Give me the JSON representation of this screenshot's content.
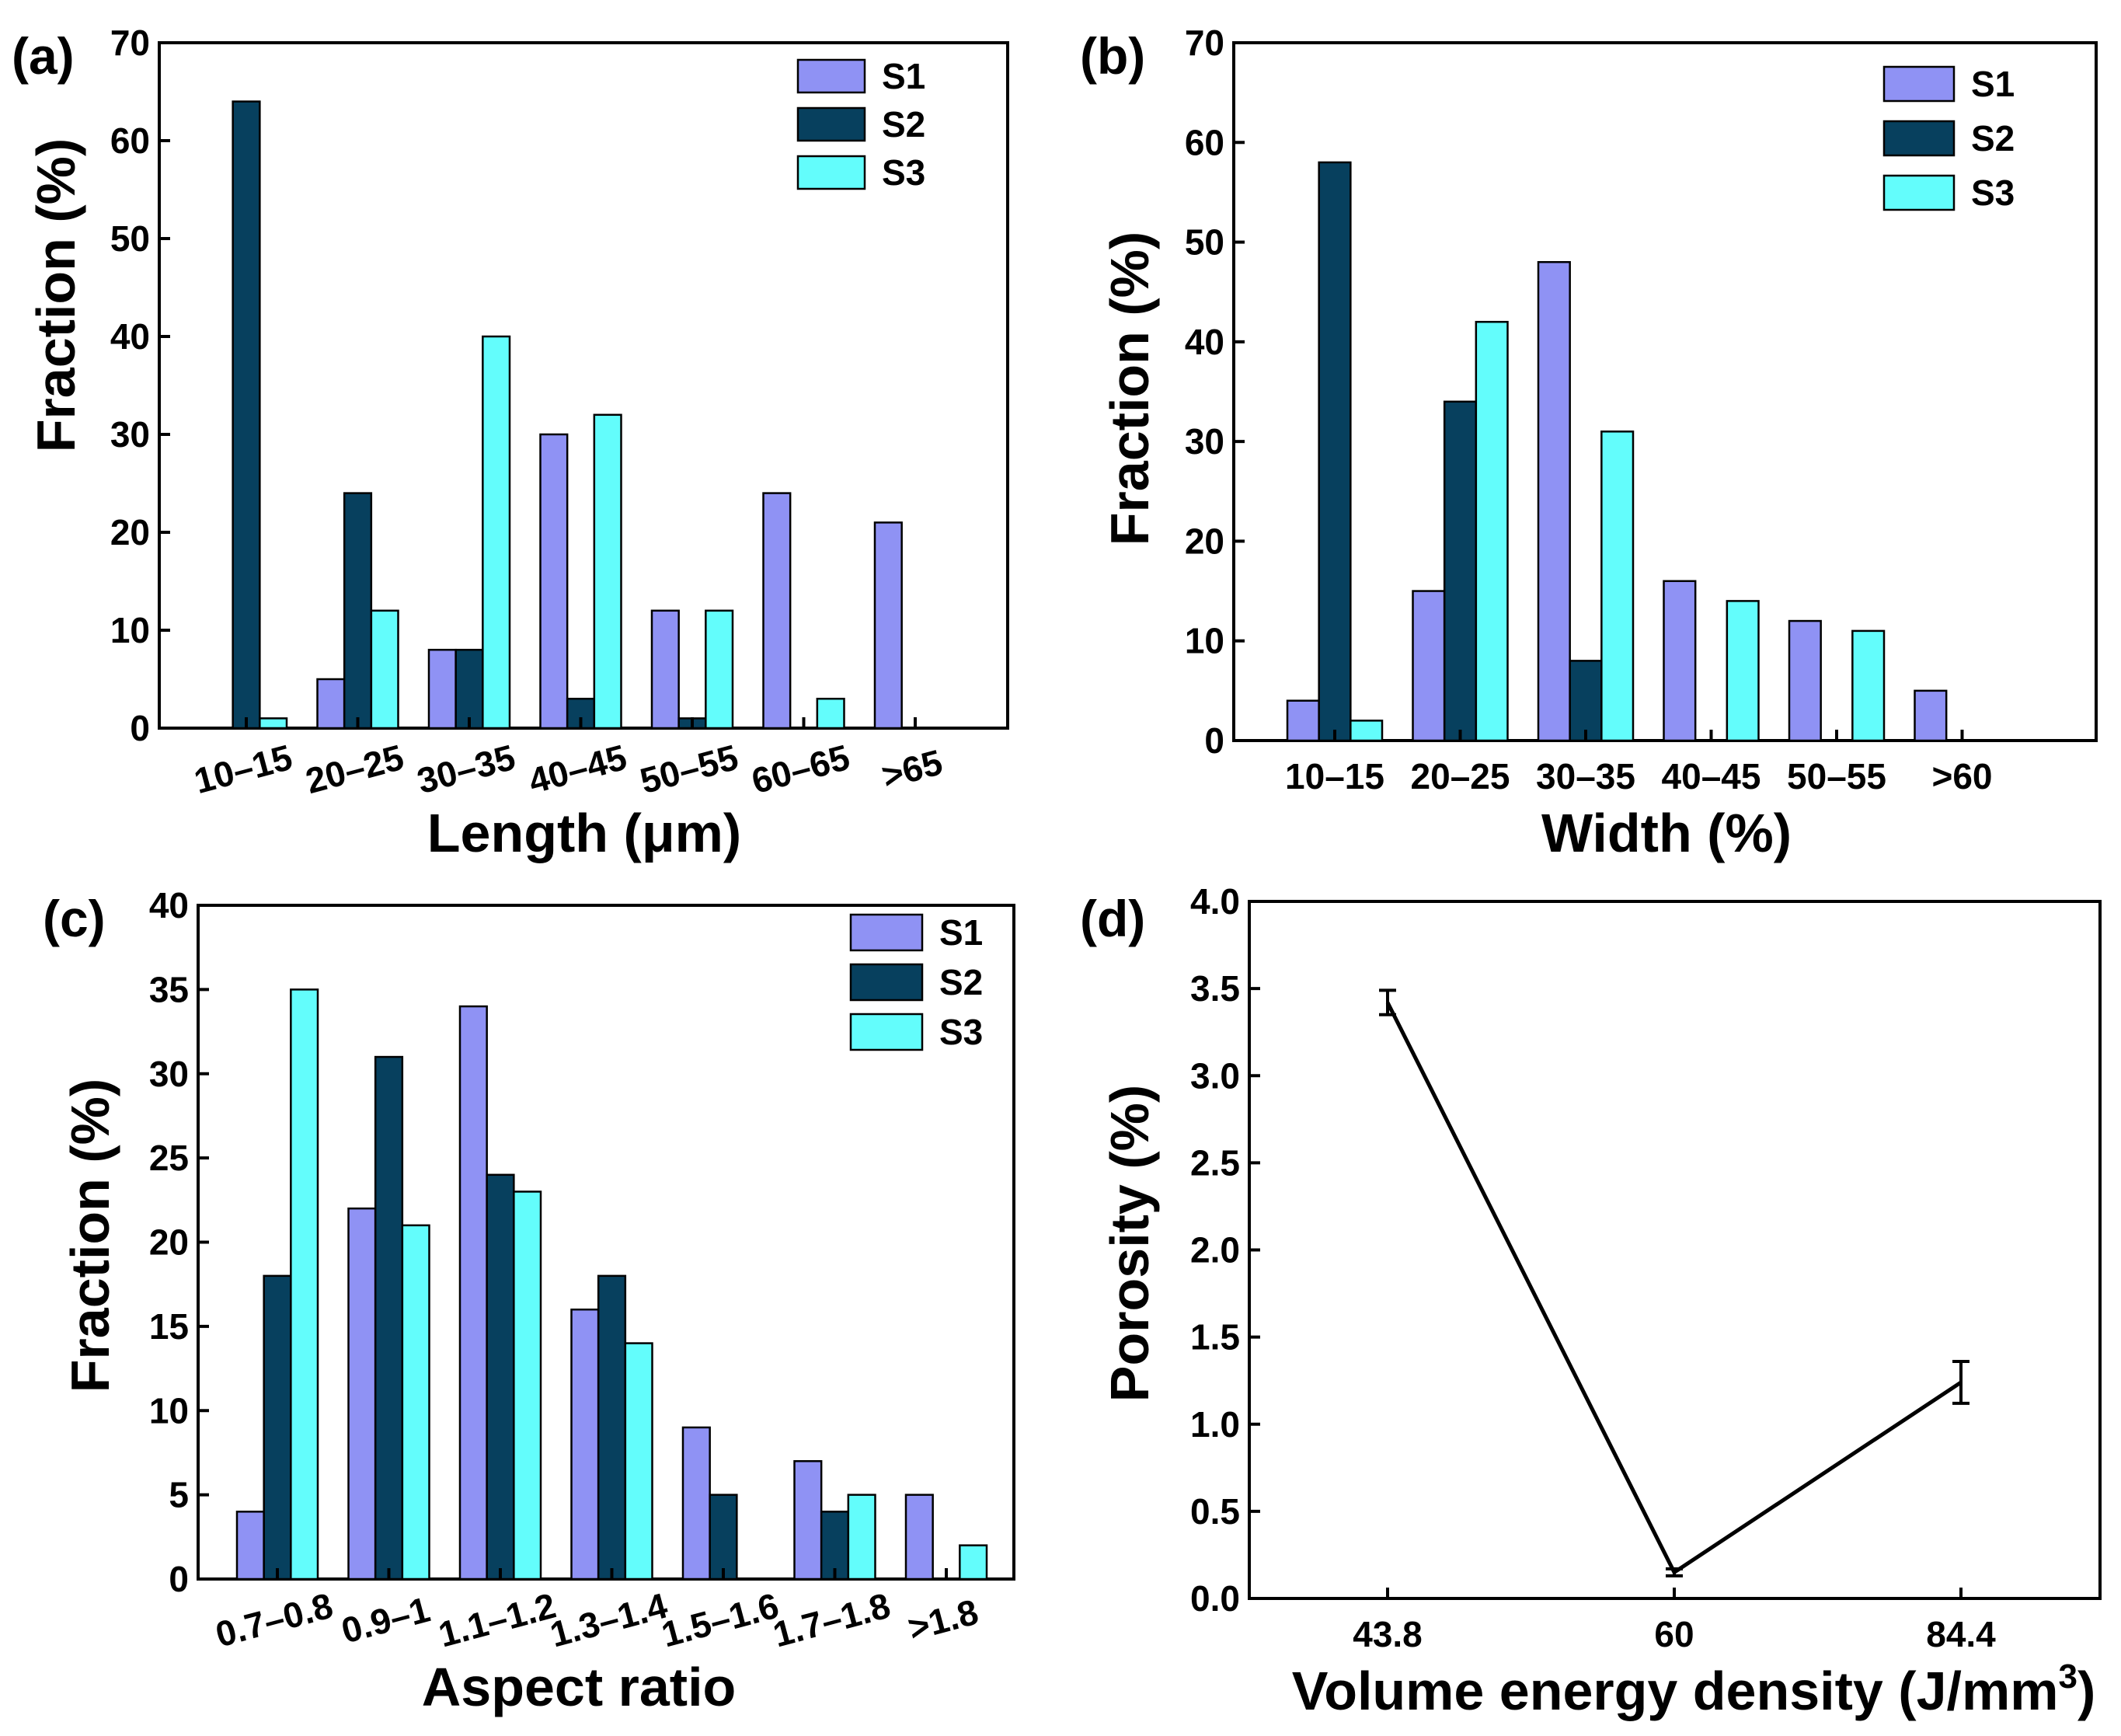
{
  "colors": {
    "S1": "#8f92f4",
    "S2": "#07405e",
    "S3": "#63fdfc",
    "axis": "#000000",
    "line": "#000000"
  },
  "chart_data": [
    {
      "id": "a",
      "panel_label": "(a)",
      "type": "bar",
      "xlabel": "Length (μm)",
      "ylabel": "Fraction (%)",
      "ylim": [
        0,
        70
      ],
      "yticks": [
        0,
        10,
        20,
        30,
        40,
        50,
        60,
        70
      ],
      "categories": [
        "10–15",
        "20–25",
        "30–35",
        "40–45",
        "50–55",
        "60–65",
        ">65"
      ],
      "series": [
        {
          "name": "S1",
          "values": [
            0,
            5,
            8,
            30,
            12,
            24,
            21
          ]
        },
        {
          "name": "S2",
          "values": [
            64,
            24,
            8,
            3,
            1,
            0,
            0
          ]
        },
        {
          "name": "S3",
          "values": [
            1,
            12,
            40,
            32,
            12,
            3,
            0
          ]
        }
      ],
      "legend": "top-right"
    },
    {
      "id": "b",
      "panel_label": "(b)",
      "type": "bar",
      "xlabel": "Width (%)",
      "ylabel": "Fraction (%)",
      "ylim": [
        0,
        70
      ],
      "yticks": [
        0,
        10,
        20,
        30,
        40,
        50,
        60,
        70
      ],
      "categories": [
        "10–15",
        "20–25",
        "30–35",
        "40–45",
        "50–55",
        ">60"
      ],
      "series": [
        {
          "name": "S1",
          "values": [
            4,
            15,
            48,
            16,
            12,
            5
          ]
        },
        {
          "name": "S2",
          "values": [
            58,
            34,
            8,
            0,
            0,
            0
          ]
        },
        {
          "name": "S3",
          "values": [
            2,
            42,
            31,
            14,
            11,
            0
          ]
        }
      ],
      "legend": "top-right"
    },
    {
      "id": "c",
      "panel_label": "(c)",
      "type": "bar",
      "xlabel": "Aspect ratio",
      "ylabel": "Fraction (%)",
      "ylim": [
        0,
        40
      ],
      "yticks": [
        0,
        5,
        10,
        15,
        20,
        25,
        30,
        35,
        40
      ],
      "categories": [
        "0.7–0.8",
        "0.9–1",
        "1.1–1.2",
        "1.3–1.4",
        "1.5–1.6",
        "1.7–1.8",
        ">1.8"
      ],
      "series": [
        {
          "name": "S1",
          "values": [
            4,
            22,
            34,
            16,
            9,
            7,
            5
          ]
        },
        {
          "name": "S2",
          "values": [
            18,
            31,
            24,
            18,
            5,
            4,
            0
          ]
        },
        {
          "name": "S3",
          "values": [
            35,
            21,
            23,
            14,
            0,
            5,
            2
          ]
        }
      ],
      "legend": "top-right"
    },
    {
      "id": "d",
      "panel_label": "(d)",
      "type": "line",
      "xlabel": "Volume energy density (J/mm",
      "xlabel_sup": "3",
      "xlabel_close": ")",
      "ylabel": "Porosity (%)",
      "ylim": [
        0,
        4
      ],
      "yticks": [
        "0.0",
        "0.5",
        "1.0",
        "1.5",
        "2.0",
        "2.5",
        "3.0",
        "3.5",
        "4.0"
      ],
      "categories": [
        "43.8",
        "60",
        "84.4"
      ],
      "values": [
        3.42,
        0.15,
        1.24
      ],
      "errors": [
        0.07,
        0.02,
        0.12
      ]
    }
  ]
}
